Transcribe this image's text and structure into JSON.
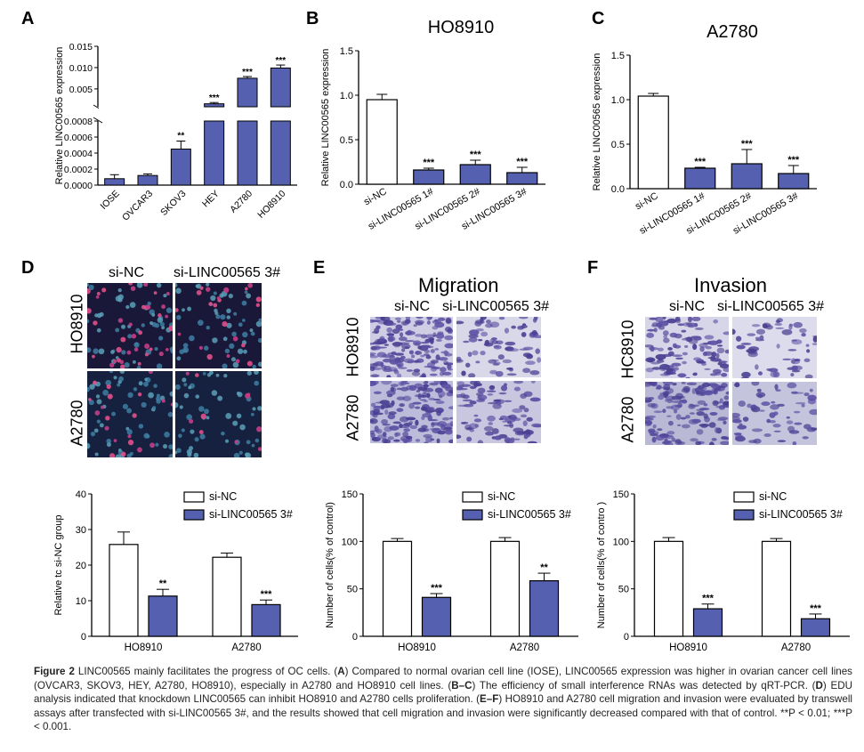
{
  "figure": {
    "panel_letters": [
      "A",
      "B",
      "C",
      "D",
      "E",
      "F"
    ],
    "caption": {
      "label": "Figure 2",
      "text_segments": [
        {
          "t": "Figure 2",
          "b": true
        },
        {
          "t": " LINC00565 mainly facilitates the progress of OC cells. (",
          "b": false
        },
        {
          "t": "A",
          "b": true
        },
        {
          "t": ") Compared to normal ovarian cell line (IOSE), LINC00565 expression was higher in ovarian cancer cell lines (OVCAR3, SKOV3, HEY, A2780, HO8910), especially in A2780 and HO8910 cell lines. (",
          "b": false
        },
        {
          "t": "B–C",
          "b": true
        },
        {
          "t": ") The efficiency of small interference RNAs was detected by qRT-PCR. (",
          "b": false
        },
        {
          "t": "D",
          "b": true
        },
        {
          "t": ") EDU analysis indicated that knockdown LINC00565 can inhibit HO8910 and A2780 cells proliferation. (",
          "b": false
        },
        {
          "t": "E–F",
          "b": true
        },
        {
          "t": ") HO8910 and A2780 cell migration and invasion were evaluated by transwell assays after transfected with si-LINC00565 3#, and the results showed that cell migration and invasion were significantly decreased compared with that of control. **P < 0.01; ***P < 0.001.",
          "b": false
        }
      ]
    },
    "image_panels": {
      "D": {
        "columns": [
          "si-NC",
          "si-LINC00565 3#"
        ],
        "rows": [
          "HO8910",
          "A2780"
        ]
      },
      "E": {
        "title": "Migration",
        "columns": [
          "si-NC",
          "si-LINC00565 3#"
        ],
        "rows": [
          "HO8910",
          "A2780"
        ]
      },
      "F": {
        "title": "Invasion",
        "columns": [
          "si-NC",
          "si-LINC00565 3#"
        ],
        "rows": [
          "HC8910",
          "A2780"
        ]
      }
    }
  },
  "colors": {
    "bar_blue": "#5560b0",
    "bar_white": "#ffffff",
    "axis": "#000000",
    "edu_dark": "#151a38",
    "transwell_bg": "#d6d5e6",
    "transwell_cell": "#4a3f92"
  },
  "chart_data": [
    {
      "id": "A",
      "type": "bar",
      "broken_axis": true,
      "categories": [
        "IOSE",
        "OVCAR3",
        "SKOV3",
        "HEY",
        "A2780",
        "HO8910"
      ],
      "values": [
        8e-05,
        0.00012,
        0.00045,
        0.0015,
        0.0075,
        0.0099
      ],
      "errors": [
        5e-05,
        2e-05,
        0.0001,
        0.0003,
        0.0004,
        0.0007
      ],
      "significance": [
        "",
        "",
        "**",
        "***",
        "***",
        "***"
      ],
      "ylabel": "Relative LINC00565 expression",
      "lower_ylim": [
        0,
        0.0008
      ],
      "lower_ticks": [
        "0.0000",
        "0.0002",
        "0.0004",
        "0.0006",
        "0.0008"
      ],
      "upper_ylim": [
        0.0008,
        0.015
      ],
      "upper_ticks": [
        "0.005",
        "0.010",
        "0.015"
      ]
    },
    {
      "id": "B",
      "type": "bar",
      "title": "HO8910",
      "categories": [
        "si-NC",
        "si-LINC00565 1#",
        "si-LINC00565 2#",
        "si-LINC00565 3#"
      ],
      "values": [
        0.95,
        0.16,
        0.22,
        0.13
      ],
      "errors": [
        0.06,
        0.02,
        0.05,
        0.06
      ],
      "bar_fill": [
        "white",
        "blue",
        "blue",
        "blue"
      ],
      "significance": [
        "",
        "***",
        "***",
        "***"
      ],
      "ylabel": "Relative LINC00565 expression",
      "ylim": [
        0,
        1.5
      ],
      "yticks": [
        "0.0",
        "0.5",
        "1.0",
        "1.5"
      ]
    },
    {
      "id": "C",
      "type": "bar",
      "title": "A2780",
      "categories": [
        "si-NC",
        "si-LINC00565 1#",
        "si-LINC00565 2#",
        "si-LINC00565 3#"
      ],
      "values": [
        1.04,
        0.23,
        0.28,
        0.17
      ],
      "errors": [
        0.03,
        0.01,
        0.16,
        0.09
      ],
      "bar_fill": [
        "white",
        "blue",
        "blue",
        "blue"
      ],
      "significance": [
        "",
        "***",
        "***",
        "***"
      ],
      "ylabel": "Relative LINC00565 expression",
      "ylim": [
        0,
        1.5
      ],
      "yticks": [
        "0.0",
        "0.5",
        "1.0",
        "1.5"
      ]
    },
    {
      "id": "D",
      "type": "bar",
      "categories": [
        "HO8910",
        "A2780"
      ],
      "series": [
        {
          "name": "si-NC",
          "values": [
            25.8,
            22.2
          ],
          "errors": [
            3.5,
            1.2
          ],
          "fill": "white"
        },
        {
          "name": "si-LINC00565 3#",
          "values": [
            11.3,
            8.9
          ],
          "errors": [
            1.9,
            1.3
          ],
          "fill": "blue"
        }
      ],
      "significance": [
        [
          "",
          "**"
        ],
        [
          "",
          "***"
        ]
      ],
      "ylabel": "Relative tc si-NC group",
      "ylim": [
        0,
        40
      ],
      "yticks": [
        "0",
        "10",
        "20",
        "30",
        "40"
      ]
    },
    {
      "id": "E",
      "type": "bar",
      "categories": [
        "HO8910",
        "A2780"
      ],
      "series": [
        {
          "name": "si-NC",
          "values": [
            100,
            100
          ],
          "errors": [
            3,
            4
          ],
          "fill": "white"
        },
        {
          "name": "si-LINC00565 3#",
          "values": [
            41,
            58.5
          ],
          "errors": [
            4,
            8
          ],
          "fill": "blue"
        }
      ],
      "significance": [
        [
          "",
          "***"
        ],
        [
          "",
          "**"
        ]
      ],
      "ylabel": "Number of cells(% of control)",
      "ylim": [
        0,
        150
      ],
      "yticks": [
        "0",
        "50",
        "100",
        "150"
      ]
    },
    {
      "id": "F",
      "type": "bar",
      "categories": [
        "HO8910",
        "A2780"
      ],
      "series": [
        {
          "name": "si-NC",
          "values": [
            100,
            100
          ],
          "errors": [
            4,
            3
          ],
          "fill": "white"
        },
        {
          "name": "si-LINC00565 3#",
          "values": [
            29,
            18.5
          ],
          "errors": [
            5,
            5
          ],
          "fill": "blue"
        }
      ],
      "significance": [
        [
          "",
          "***"
        ],
        [
          "",
          "***"
        ]
      ],
      "ylabel": "Number of cells(% of contro )",
      "ylim": [
        0,
        150
      ],
      "yticks": [
        "0",
        "50",
        "100",
        "150"
      ]
    }
  ]
}
